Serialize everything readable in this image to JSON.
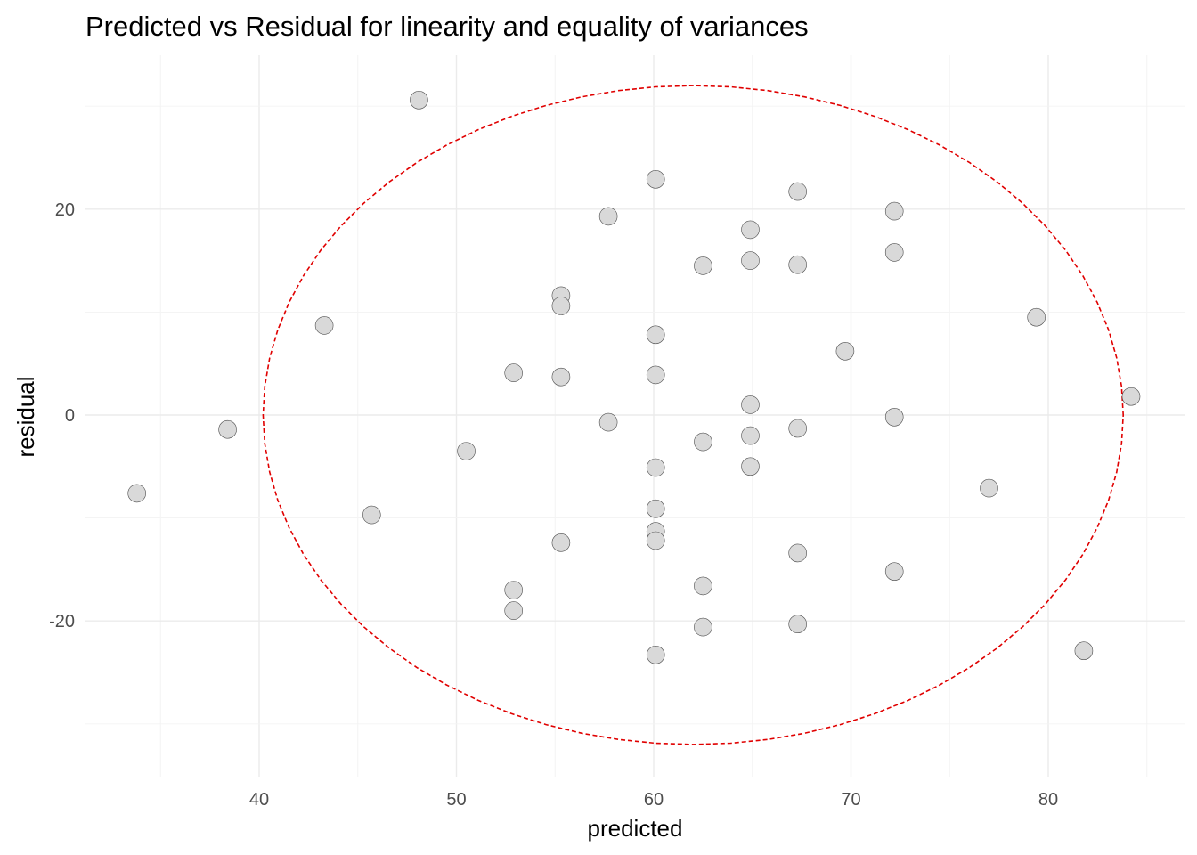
{
  "chart_data": {
    "type": "scatter",
    "title": "Predicted vs Residual for linearity and equality of variances",
    "xlabel": "predicted",
    "ylabel": "residual",
    "xlim": [
      31.2,
      86.9
    ],
    "ylim": [
      -35.3,
      35.3
    ],
    "x_ticks": [
      40,
      50,
      60,
      70,
      80
    ],
    "x_tick_labels": [
      "40",
      "50",
      "60",
      "70",
      "80"
    ],
    "y_ticks": [
      -20,
      0,
      20
    ],
    "y_tick_labels": [
      "-20",
      "0",
      "20"
    ],
    "grid": true,
    "points": [
      {
        "x": 33.8,
        "y": -7.6
      },
      {
        "x": 38.4,
        "y": -1.4
      },
      {
        "x": 43.3,
        "y": 8.7
      },
      {
        "x": 45.7,
        "y": -9.7
      },
      {
        "x": 48.1,
        "y": 30.6
      },
      {
        "x": 50.5,
        "y": -3.5
      },
      {
        "x": 52.9,
        "y": 4.1
      },
      {
        "x": 52.9,
        "y": -17.0
      },
      {
        "x": 52.9,
        "y": -19.0
      },
      {
        "x": 55.3,
        "y": 11.6
      },
      {
        "x": 55.3,
        "y": 10.6
      },
      {
        "x": 55.3,
        "y": 3.7
      },
      {
        "x": 55.3,
        "y": -12.4
      },
      {
        "x": 57.7,
        "y": 19.3
      },
      {
        "x": 57.7,
        "y": -0.7
      },
      {
        "x": 60.1,
        "y": 22.9
      },
      {
        "x": 60.1,
        "y": 7.8
      },
      {
        "x": 60.1,
        "y": 3.9
      },
      {
        "x": 60.1,
        "y": -5.1
      },
      {
        "x": 60.1,
        "y": -9.1
      },
      {
        "x": 60.1,
        "y": -11.3
      },
      {
        "x": 60.1,
        "y": -12.2
      },
      {
        "x": 60.1,
        "y": -23.3
      },
      {
        "x": 62.5,
        "y": 14.5
      },
      {
        "x": 62.5,
        "y": -2.6
      },
      {
        "x": 62.5,
        "y": -16.6
      },
      {
        "x": 62.5,
        "y": -20.6
      },
      {
        "x": 64.9,
        "y": 18.0
      },
      {
        "x": 64.9,
        "y": 15.0
      },
      {
        "x": 64.9,
        "y": 1.0
      },
      {
        "x": 64.9,
        "y": -2.0
      },
      {
        "x": 64.9,
        "y": -5.0
      },
      {
        "x": 67.3,
        "y": 21.7
      },
      {
        "x": 67.3,
        "y": 14.6
      },
      {
        "x": 67.3,
        "y": -1.3
      },
      {
        "x": 67.3,
        "y": -13.4
      },
      {
        "x": 67.3,
        "y": -20.3
      },
      {
        "x": 69.7,
        "y": 6.2
      },
      {
        "x": 72.2,
        "y": 19.8
      },
      {
        "x": 72.2,
        "y": 15.8
      },
      {
        "x": 72.2,
        "y": -0.2
      },
      {
        "x": 72.2,
        "y": -15.2
      },
      {
        "x": 77.0,
        "y": -7.1
      },
      {
        "x": 79.4,
        "y": 9.5
      },
      {
        "x": 81.8,
        "y": -22.9
      },
      {
        "x": 84.2,
        "y": 1.8
      }
    ],
    "ellipse": {
      "center_x": 62.0,
      "center_y": 0.0,
      "radius_x": 21.8,
      "radius_y": 32.0
    },
    "colors": {
      "point_fill": "#d9d9d9",
      "point_stroke": "#4d4d4d",
      "ellipse": "#e00000"
    }
  }
}
